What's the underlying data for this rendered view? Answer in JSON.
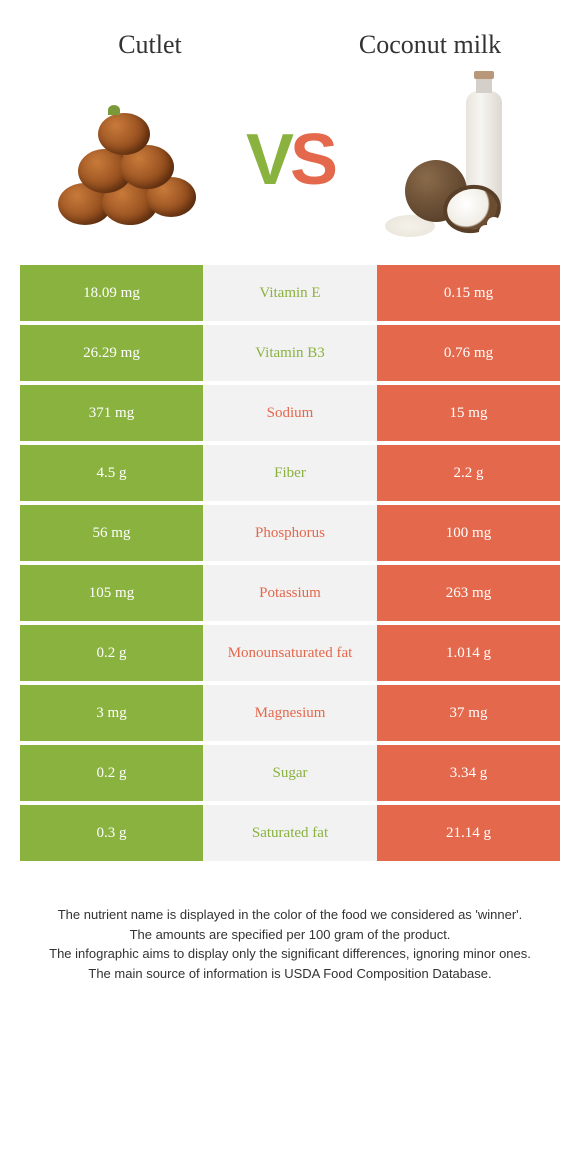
{
  "header": {
    "left_title": "Cutlet",
    "right_title": "Coconut milk",
    "vs_v": "V",
    "vs_s": "S"
  },
  "colors": {
    "left_bg": "#8ab23f",
    "right_bg": "#e4684c",
    "mid_bg": "#f2f2f2",
    "left_text": "#8ab23f",
    "right_text": "#e4684c"
  },
  "rows": [
    {
      "left": "18.09 mg",
      "label": "Vitamin E",
      "right": "0.15 mg",
      "winner": "left"
    },
    {
      "left": "26.29 mg",
      "label": "Vitamin B3",
      "right": "0.76 mg",
      "winner": "left"
    },
    {
      "left": "371 mg",
      "label": "Sodium",
      "right": "15 mg",
      "winner": "right"
    },
    {
      "left": "4.5 g",
      "label": "Fiber",
      "right": "2.2 g",
      "winner": "left"
    },
    {
      "left": "56 mg",
      "label": "Phosphorus",
      "right": "100 mg",
      "winner": "right"
    },
    {
      "left": "105 mg",
      "label": "Potassium",
      "right": "263 mg",
      "winner": "right"
    },
    {
      "left": "0.2 g",
      "label": "Monounsaturated fat",
      "right": "1.014 g",
      "winner": "right"
    },
    {
      "left": "3 mg",
      "label": "Magnesium",
      "right": "37 mg",
      "winner": "right"
    },
    {
      "left": "0.2 g",
      "label": "Sugar",
      "right": "3.34 g",
      "winner": "left"
    },
    {
      "left": "0.3 g",
      "label": "Saturated fat",
      "right": "21.14 g",
      "winner": "left"
    }
  ],
  "footer": {
    "line1": "The nutrient name is displayed in the color of the food we considered as 'winner'.",
    "line2": "The amounts are specified per 100 gram of the product.",
    "line3": "The infographic aims to display only the significant differences, ignoring minor ones.",
    "line4": "The main source of information is USDA Food Composition Database."
  }
}
